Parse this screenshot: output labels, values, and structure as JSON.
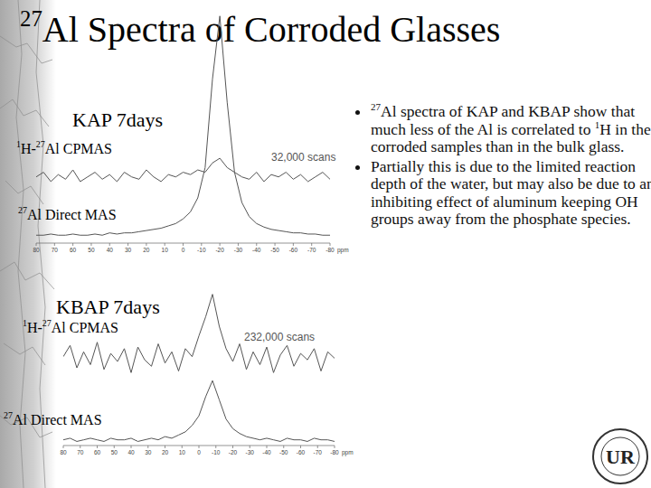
{
  "slide": {
    "title": "27Al Spectra of Corroded Glasses",
    "bullets": [
      "27Al spectra of KAP and KBAP show that much less of the Al is correlated to 1H in the corroded samples than in the bulk glass.",
      "Partially this is due to the limited reaction depth of the water, but may also be due to an inhibiting effect of aluminum keeping OH groups away from the phosphate species."
    ],
    "logo": "UR"
  },
  "chart_data": [
    {
      "type": "line",
      "title": "KAP 7days",
      "annotations": [
        "32,000 scans"
      ],
      "x": [
        80,
        76,
        72,
        68,
        64,
        60,
        56,
        52,
        48,
        44,
        40,
        36,
        32,
        28,
        24,
        20,
        16,
        12,
        8,
        4,
        0,
        -4,
        -8,
        -12,
        -16,
        -20,
        -24,
        -28,
        -32,
        -36,
        -40,
        -44,
        -48,
        -52,
        -56,
        -60,
        -64,
        -68,
        -72,
        -76,
        -80
      ],
      "series": [
        {
          "name": "1H-27Al CPMAS",
          "color": "#555555",
          "values": [
            28,
            30,
            26,
            29,
            27,
            31,
            26,
            28,
            30,
            27,
            29,
            26,
            30,
            28,
            27,
            31,
            28,
            26,
            29,
            28,
            30,
            29,
            31,
            30,
            34,
            36,
            32,
            30,
            28,
            27,
            30,
            26,
            29,
            28,
            30,
            27,
            29,
            26,
            28,
            30,
            27
          ]
        },
        {
          "name": "27Al Direct MAS",
          "color": "#555555",
          "values": [
            3,
            3,
            3.5,
            3,
            3,
            3.5,
            3,
            3,
            3.5,
            3,
            4,
            3.5,
            4,
            4,
            4.5,
            5,
            5.5,
            6,
            7,
            8,
            10,
            13,
            19,
            32,
            70,
            97,
            60,
            30,
            17,
            11,
            8,
            6.5,
            5.5,
            5,
            4.5,
            4,
            4,
            3.5,
            3.5,
            3,
            3
          ]
        }
      ],
      "xlim": [
        80,
        -80
      ],
      "xticks": [
        80,
        70,
        60,
        50,
        40,
        30,
        20,
        10,
        0,
        -10,
        -20,
        -30,
        -40,
        -50,
        -60,
        -70,
        -80
      ],
      "ylim": [
        0,
        100
      ],
      "x_label": "ppm",
      "tick_labels": "x",
      "grid": false
    },
    {
      "type": "line",
      "title": "KBAP 7days",
      "annotations": [
        "232,000 scans"
      ],
      "x": [
        80,
        76,
        72,
        68,
        64,
        60,
        56,
        52,
        48,
        44,
        40,
        36,
        32,
        28,
        24,
        20,
        16,
        12,
        8,
        4,
        0,
        -4,
        -8,
        -12,
        -16,
        -20,
        -24,
        -28,
        -32,
        -36,
        -40,
        -44,
        -48,
        -52,
        -56,
        -60,
        -64,
        -68,
        -72,
        -76,
        -80
      ],
      "series": [
        {
          "name": "1H-27Al CPMAS",
          "color": "#555555",
          "values": [
            55,
            62,
            48,
            58,
            50,
            64,
            47,
            57,
            52,
            60,
            45,
            61,
            53,
            49,
            63,
            51,
            58,
            46,
            60,
            55,
            68,
            80,
            94,
            74,
            60,
            52,
            63,
            47,
            58,
            50,
            61,
            45,
            56,
            62,
            49,
            57,
            53,
            60,
            46,
            58,
            54
          ]
        },
        {
          "name": "27Al Direct MAS",
          "color": "#555555",
          "values": [
            3,
            4,
            2,
            3,
            4,
            3,
            2,
            4,
            3,
            3,
            4,
            2,
            3,
            4,
            3,
            5,
            4,
            6,
            8,
            12,
            18,
            30,
            40,
            28,
            16,
            10,
            7,
            5,
            4,
            3,
            4,
            3,
            2,
            4,
            3,
            3,
            2,
            4,
            3,
            3,
            2
          ]
        }
      ],
      "xlim": [
        80,
        -80
      ],
      "xticks": [
        80,
        70,
        60,
        50,
        40,
        30,
        20,
        10,
        0,
        -10,
        -20,
        -30,
        -40,
        -50,
        -60,
        -70,
        -80
      ],
      "ylim": [
        0,
        100
      ],
      "x_label": "ppm",
      "tick_labels": "x",
      "grid": false
    }
  ]
}
